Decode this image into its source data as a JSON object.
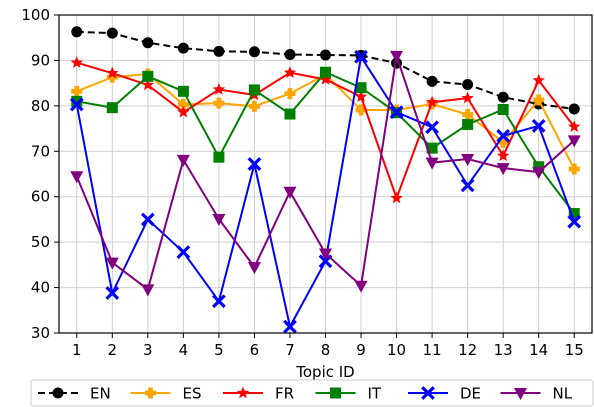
{
  "chart_data": {
    "type": "line",
    "xlabel": "Topic ID",
    "ylabel": "",
    "xlim": [
      0.5,
      15.5
    ],
    "ylim": [
      30,
      100
    ],
    "yticks": [
      30,
      40,
      50,
      60,
      70,
      80,
      90,
      100
    ],
    "x": [
      1,
      2,
      3,
      4,
      5,
      6,
      7,
      8,
      9,
      10,
      11,
      12,
      13,
      14,
      15
    ],
    "grid": true,
    "legend_placement": "bottom",
    "series": [
      {
        "name": "EN",
        "color": "#000000",
        "marker": "circle",
        "dashed": true,
        "values": [
          96.3,
          96.0,
          93.9,
          92.7,
          92.0,
          91.9,
          91.3,
          91.2,
          91.1,
          89.4,
          85.4,
          84.7,
          81.9,
          80.4,
          79.3
        ]
      },
      {
        "name": "ES",
        "color": "#ffa500",
        "marker": "plus",
        "dashed": false,
        "values": [
          83.2,
          86.3,
          87.0,
          80.3,
          80.6,
          79.9,
          82.7,
          86.9,
          79.1,
          79.1,
          80.4,
          78.1,
          72.0,
          81.3,
          66.1
        ]
      },
      {
        "name": "FR",
        "color": "#ff0000",
        "marker": "star",
        "dashed": false,
        "values": [
          89.5,
          87.2,
          84.6,
          78.6,
          83.6,
          82.4,
          87.3,
          85.8,
          82.0,
          59.7,
          80.8,
          81.7,
          69.0,
          85.6,
          75.4
        ]
      },
      {
        "name": "IT",
        "color": "#008000",
        "marker": "square",
        "dashed": false,
        "values": [
          81.0,
          79.6,
          86.5,
          83.2,
          68.7,
          83.5,
          78.2,
          87.4,
          84.0,
          78.5,
          70.7,
          75.9,
          79.2,
          66.6,
          56.3
        ]
      },
      {
        "name": "DE",
        "color": "#0000ff",
        "marker": "x",
        "dashed": false,
        "values": [
          80.3,
          38.8,
          55.0,
          47.8,
          37.0,
          67.2,
          31.4,
          45.8,
          90.8,
          78.6,
          75.3,
          62.5,
          73.4,
          75.6,
          54.5
        ]
      },
      {
        "name": "NL",
        "color": "#800080",
        "marker": "triangle-down",
        "dashed": false,
        "values": [
          64.5,
          45.5,
          39.6,
          68.1,
          55.1,
          44.5,
          61.1,
          47.5,
          40.4,
          91.0,
          67.5,
          68.3,
          66.3,
          65.4,
          72.4
        ]
      }
    ]
  }
}
